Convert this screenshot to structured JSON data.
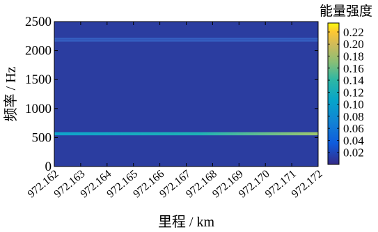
{
  "chart_data": {
    "type": "heatmap",
    "title": "",
    "xlabel": "里程 / km",
    "ylabel": "频率 / Hz",
    "x_ticks": [
      "972.162",
      "972.163",
      "972.164",
      "972.165",
      "972.166",
      "972.167",
      "972.168",
      "972.169",
      "972.170",
      "972.171",
      "972.172"
    ],
    "y_ticks": [
      "0",
      "500",
      "1000",
      "1500",
      "2000",
      "2500"
    ],
    "xlim": [
      972.162,
      972.172
    ],
    "ylim": [
      0,
      2500
    ],
    "colorbar": {
      "label": "能量强度",
      "ticks": [
        "0.02",
        "0.04",
        "0.06",
        "0.08",
        "0.10",
        "0.12",
        "0.14",
        "0.16",
        "0.18",
        "0.20",
        "0.22"
      ],
      "range": [
        0,
        0.235
      ]
    },
    "background_intensity": 0.01,
    "bands": [
      {
        "frequency_hz": 565,
        "intensity_start": 0.07,
        "intensity_end": 0.15
      },
      {
        "frequency_hz": 2205,
        "intensity_start": 0.04,
        "intensity_end": 0.04
      },
      {
        "frequency_hz": 2170,
        "intensity_start": 0.03,
        "intensity_end": 0.03
      }
    ],
    "grid": false,
    "colormap": "parula"
  }
}
